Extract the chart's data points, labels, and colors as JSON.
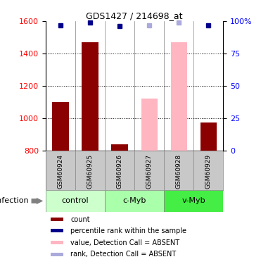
{
  "title": "GDS1427 / 214698_at",
  "samples": [
    "GSM60924",
    "GSM60925",
    "GSM60926",
    "GSM60927",
    "GSM60928",
    "GSM60929"
  ],
  "bar_values": [
    1100,
    1470,
    840,
    1125,
    1470,
    975
  ],
  "bar_absent": [
    false,
    false,
    false,
    true,
    true,
    false
  ],
  "rank_values": [
    97,
    99,
    96,
    97,
    99,
    97
  ],
  "rank_absent": [
    false,
    false,
    false,
    true,
    true,
    false
  ],
  "ylim_left": [
    800,
    1600
  ],
  "ylim_right": [
    0,
    100
  ],
  "yticks_left": [
    800,
    1000,
    1200,
    1400,
    1600
  ],
  "yticks_right": [
    0,
    25,
    50,
    75,
    100
  ],
  "bar_color_present": "#8B0000",
  "bar_color_absent": "#FFB6C1",
  "rank_color_present": "#00008B",
  "rank_color_absent": "#AAAADD",
  "groups": [
    {
      "name": "control",
      "color": "#ccffcc",
      "xstart": 0,
      "xend": 2
    },
    {
      "name": "c-Myb",
      "color": "#aaffaa",
      "xstart": 2,
      "xend": 4
    },
    {
      "name": "v-Myb",
      "color": "#44ee44",
      "xstart": 4,
      "xend": 6
    }
  ],
  "infection_label": "infection",
  "legend_items": [
    {
      "label": "count",
      "color": "#8B0000"
    },
    {
      "label": "percentile rank within the sample",
      "color": "#00008B"
    },
    {
      "label": "value, Detection Call = ABSENT",
      "color": "#FFB6C1"
    },
    {
      "label": "rank, Detection Call = ABSENT",
      "color": "#AAAADD"
    }
  ]
}
